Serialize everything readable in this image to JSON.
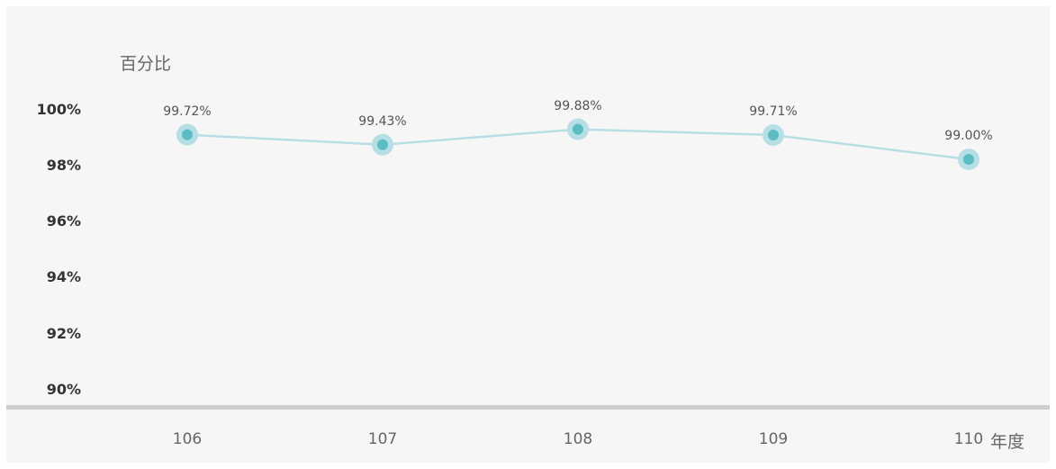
{
  "chart_data": {
    "type": "line",
    "categories": [
      "106",
      "107",
      "108",
      "109",
      "110"
    ],
    "series": [
      {
        "values": [
          99.72,
          99.43,
          99.88,
          99.71,
          99.0
        ]
      }
    ],
    "data_labels": [
      "99.72%",
      "99.43%",
      "99.88%",
      "99.71%",
      "99.00%"
    ],
    "yticks": [
      "100%",
      "98%",
      "96%",
      "94%",
      "92%",
      "90%"
    ],
    "ylabel": "百分比",
    "xlabel": "年度",
    "grid": false,
    "colors": {
      "line": "#b6dfe5",
      "marker_fill": "#5bbcc4",
      "marker_halo": "#b6dfe5",
      "panel": "#f6f6f6",
      "axis": "#cdcdcd"
    }
  }
}
